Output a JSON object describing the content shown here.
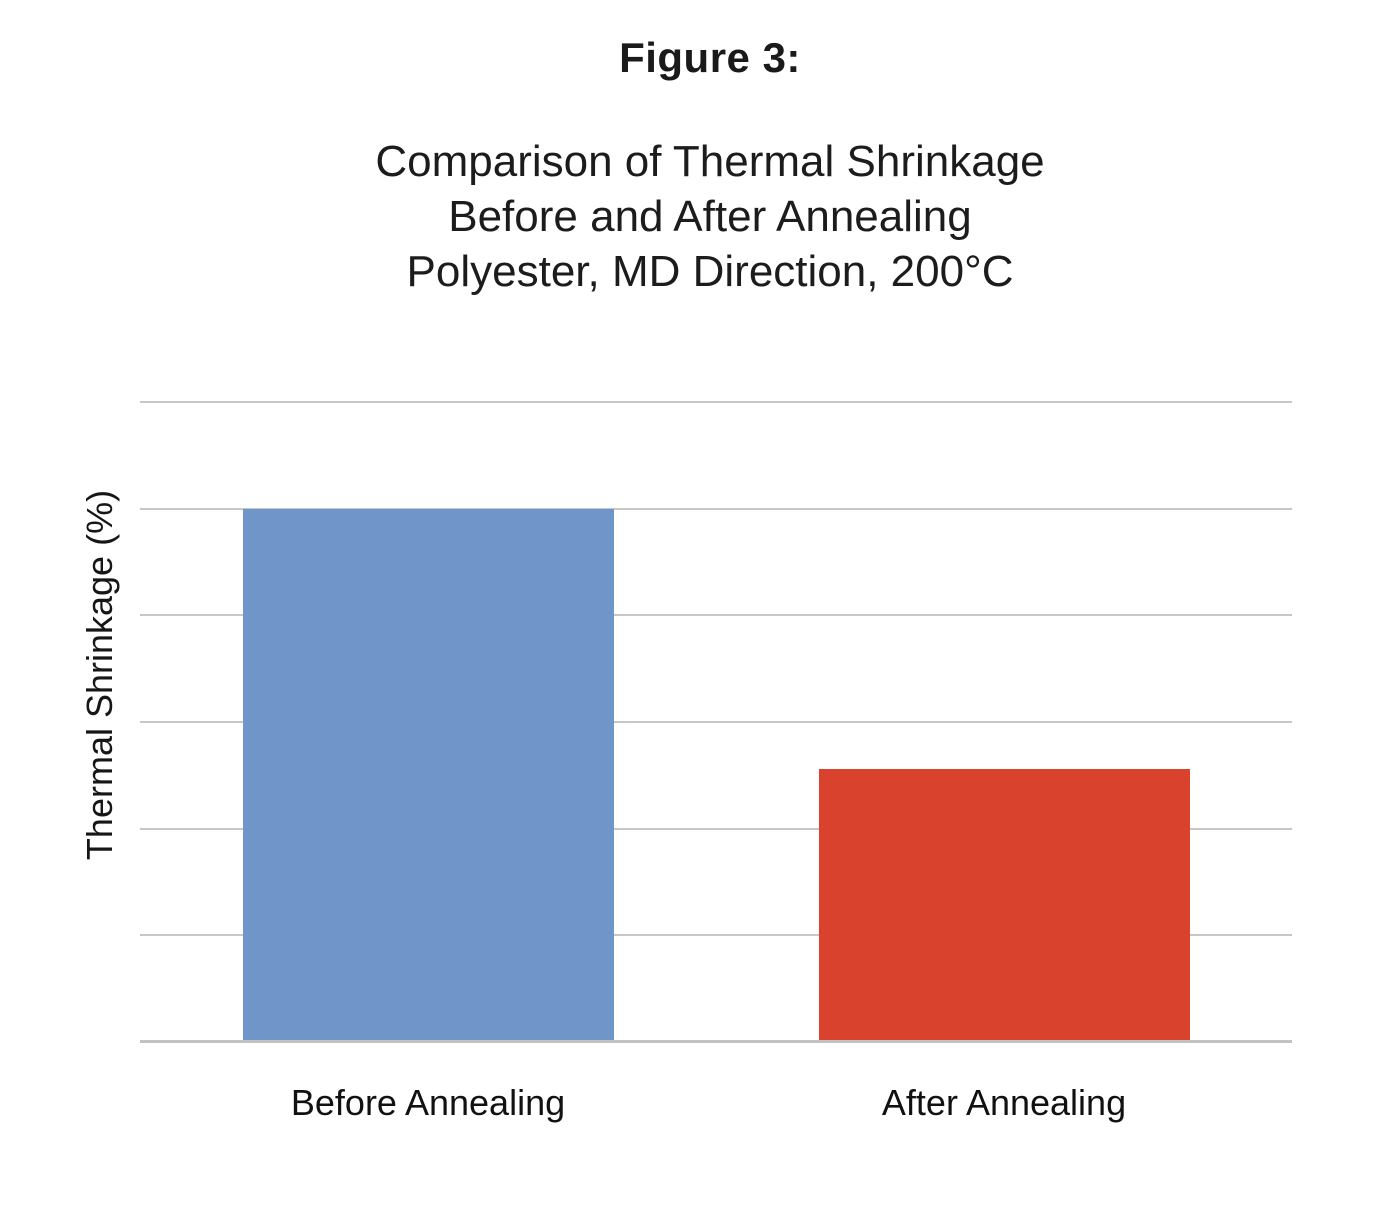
{
  "figure_label": "Figure 3:",
  "title_lines": [
    "Comparison of Thermal Shrinkage",
    "Before and After Annealing",
    "Polyester, MD Direction, 200°C"
  ],
  "chart_data": {
    "type": "bar",
    "title": "Comparison of Thermal Shrinkage Before and After Annealing — Polyester, MD Direction, 200°C",
    "categories": [
      "Before Annealing",
      "After Annealing"
    ],
    "values": [
      2.5,
      1.28
    ],
    "xlabel": "",
    "ylabel": "Thermal Shrinkage (%)",
    "ylim": [
      0,
      3
    ],
    "gridline_step": 0.5,
    "grid": true,
    "y_tick_labels_visible": false,
    "legend": "none",
    "bar_colors": [
      "#7096c9",
      "#d9432e"
    ]
  },
  "colors": {
    "background": "#ffffff",
    "gridline": "#c7c7c7",
    "axis_line": "#c2c2c2",
    "text": "#1a1a1a"
  }
}
